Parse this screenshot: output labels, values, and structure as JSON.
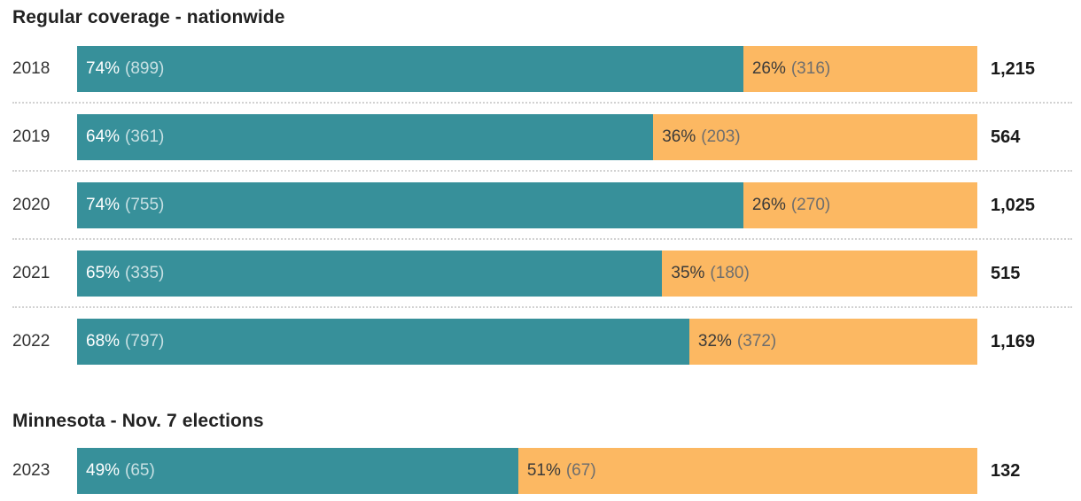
{
  "colors": {
    "teal": "#37909a",
    "orange": "#fcb862",
    "title_text": "#222222",
    "year_text": "#333333",
    "total_text": "#1a1a1a",
    "teal_label_text": "#ffffff",
    "orange_label_text": "#3a3a3a",
    "separator": "#d2d2d2"
  },
  "sections": [
    {
      "title": "Regular coverage - nationwide",
      "rows": [
        {
          "year": "2018",
          "total": "1,215",
          "teal": {
            "pct": 74,
            "label": "74%",
            "count": "(899)"
          },
          "orange": {
            "pct": 26,
            "label": "26%",
            "count": "(316)"
          }
        },
        {
          "year": "2019",
          "total": "564",
          "teal": {
            "pct": 64,
            "label": "64%",
            "count": "(361)"
          },
          "orange": {
            "pct": 36,
            "label": "36%",
            "count": "(203)"
          }
        },
        {
          "year": "2020",
          "total": "1,025",
          "teal": {
            "pct": 74,
            "label": "74%",
            "count": "(755)"
          },
          "orange": {
            "pct": 26,
            "label": "26%",
            "count": "(270)"
          }
        },
        {
          "year": "2021",
          "total": "515",
          "teal": {
            "pct": 65,
            "label": "65%",
            "count": "(335)"
          },
          "orange": {
            "pct": 35,
            "label": "35%",
            "count": "(180)"
          }
        },
        {
          "year": "2022",
          "total": "1,169",
          "teal": {
            "pct": 68,
            "label": "68%",
            "count": "(797)"
          },
          "orange": {
            "pct": 32,
            "label": "32%",
            "count": "(372)"
          }
        }
      ]
    },
    {
      "title": "Minnesota - Nov. 7 elections",
      "rows": [
        {
          "year": "2023",
          "total": "132",
          "teal": {
            "pct": 49,
            "label": "49%",
            "count": "(65)"
          },
          "orange": {
            "pct": 51,
            "label": "51%",
            "count": "(67)"
          }
        }
      ]
    }
  ],
  "chart_data": [
    {
      "type": "bar",
      "subtype": "horizontal-stacked-percent",
      "title": "Regular coverage - nationwide",
      "categories": [
        "2018",
        "2019",
        "2020",
        "2021",
        "2022"
      ],
      "series": [
        {
          "name": "teal-segment",
          "color": "#37909a",
          "percent": [
            74,
            64,
            74,
            65,
            68
          ],
          "counts": [
            899,
            361,
            755,
            335,
            797
          ]
        },
        {
          "name": "orange-segment",
          "color": "#fcb862",
          "percent": [
            26,
            36,
            26,
            35,
            32
          ],
          "counts": [
            316,
            203,
            270,
            180,
            372
          ]
        }
      ],
      "totals": [
        1215,
        564,
        1025,
        515,
        1169
      ],
      "xlim": [
        0,
        100
      ],
      "grid": false,
      "legend": false
    },
    {
      "type": "bar",
      "subtype": "horizontal-stacked-percent",
      "title": "Minnesota - Nov. 7 elections",
      "categories": [
        "2023"
      ],
      "series": [
        {
          "name": "teal-segment",
          "color": "#37909a",
          "percent": [
            49
          ],
          "counts": [
            65
          ]
        },
        {
          "name": "orange-segment",
          "color": "#fcb862",
          "percent": [
            51
          ],
          "counts": [
            67
          ]
        }
      ],
      "totals": [
        132
      ],
      "xlim": [
        0,
        100
      ],
      "grid": false,
      "legend": false
    }
  ]
}
